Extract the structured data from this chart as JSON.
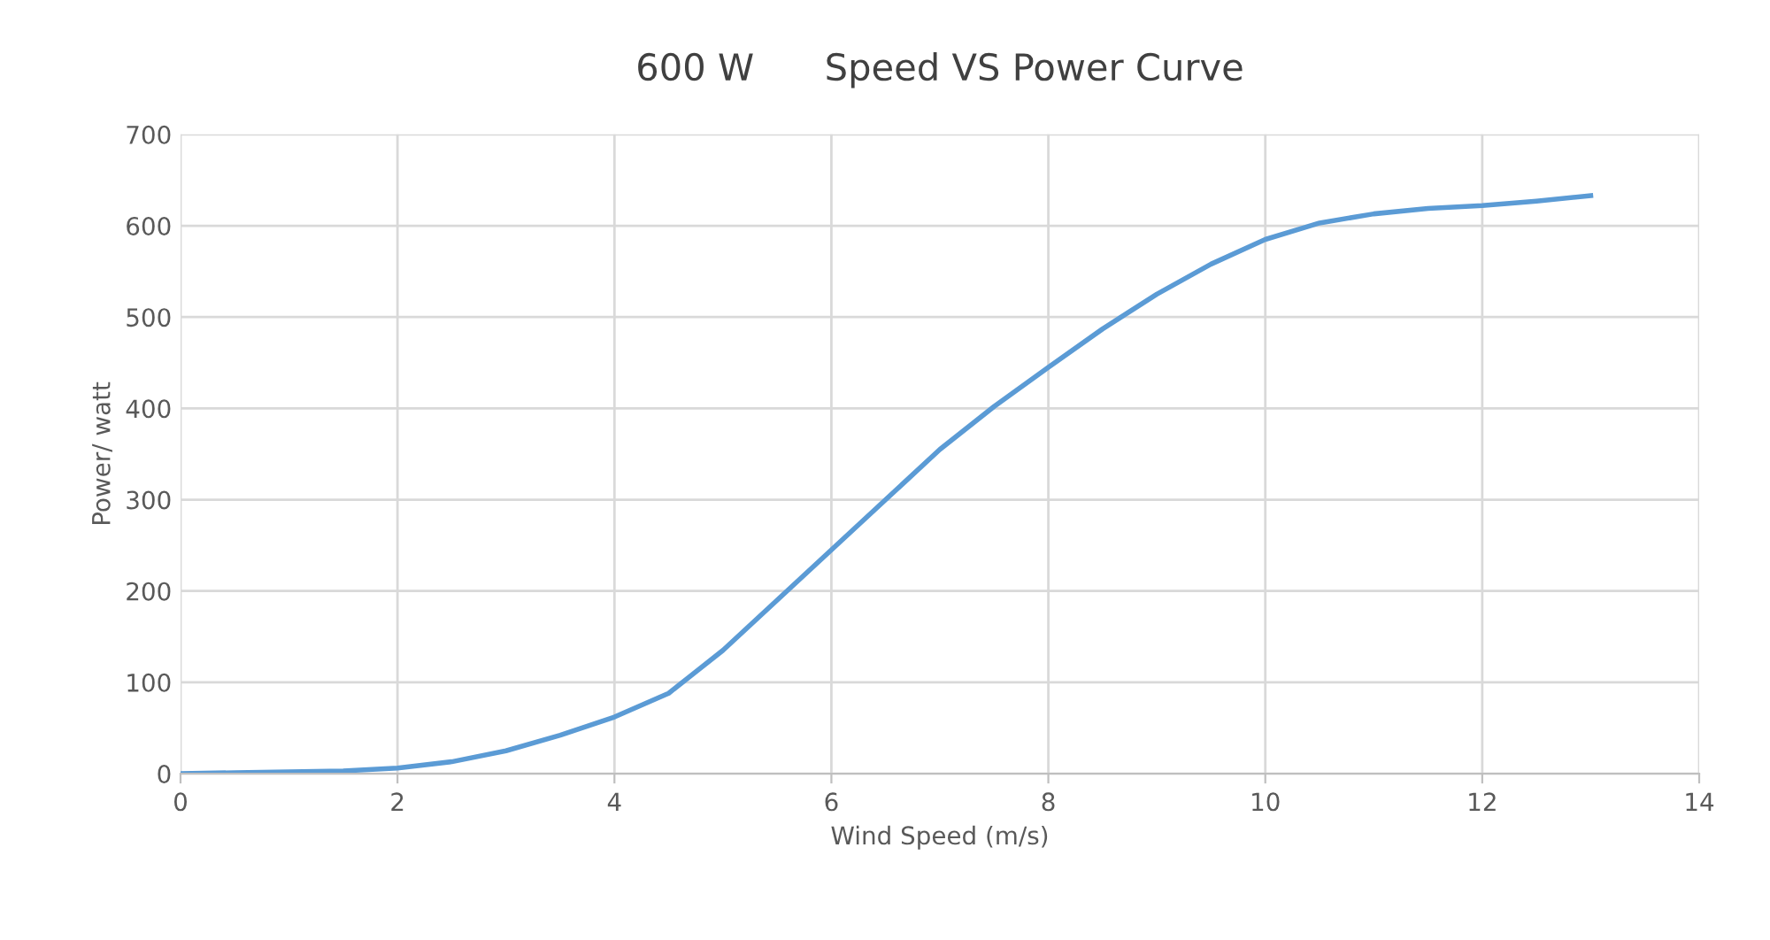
{
  "chart_data": {
    "type": "line",
    "title": "600 W      Speed VS Power Curve",
    "xlabel": "Wind Speed (m/s)",
    "ylabel": "Power/ watt",
    "x": [
      0,
      0.5,
      1,
      1.5,
      2,
      2.5,
      3,
      3.5,
      4,
      4.5,
      5,
      5.5,
      6,
      6.5,
      7,
      7.5,
      8,
      8.5,
      9,
      9.5,
      10,
      10.5,
      11,
      11.5,
      12,
      12.5,
      13
    ],
    "series": [
      {
        "color": "#5b9bd5",
        "values": [
          0,
          1,
          2,
          3,
          6,
          13,
          25,
          42,
          62,
          88,
          135,
          190,
          245,
          300,
          355,
          402,
          445,
          487,
          525,
          558,
          585,
          603,
          613,
          619,
          622,
          627,
          633
        ]
      }
    ],
    "xlim": [
      0,
      14
    ],
    "xticks": [
      0,
      2,
      4,
      6,
      8,
      10,
      12,
      14
    ],
    "ylim": [
      0,
      700
    ],
    "yticks": [
      0,
      100,
      200,
      300,
      400,
      500,
      600,
      700
    ],
    "grid": true,
    "legend": false,
    "marker": "none",
    "line_style": "solid"
  }
}
